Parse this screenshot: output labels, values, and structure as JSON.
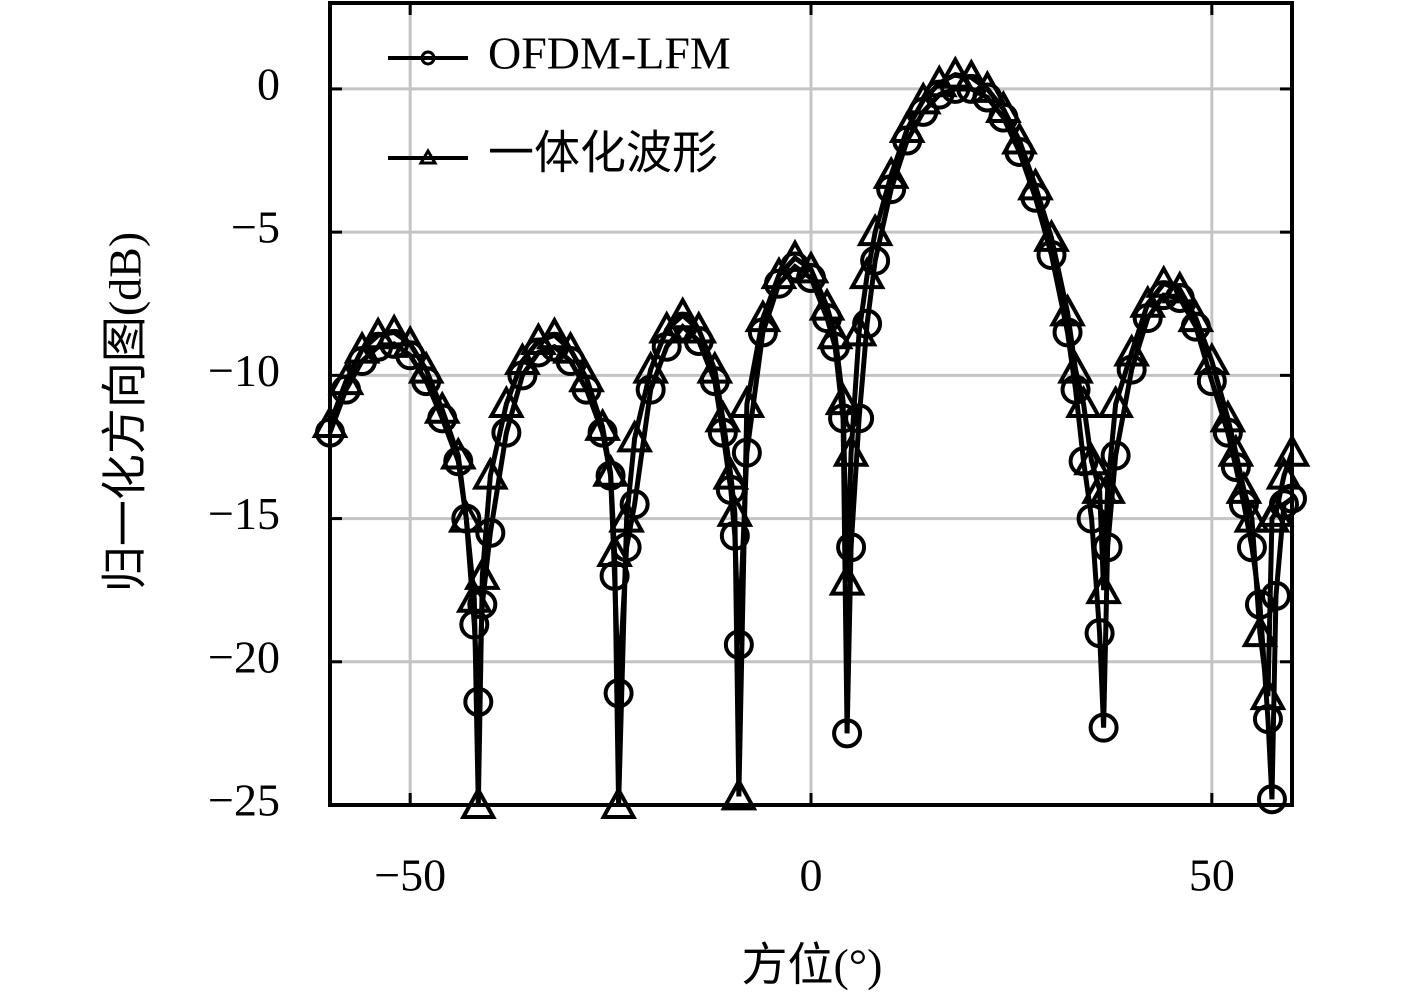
{
  "chart_data": {
    "type": "line",
    "xlabel": "方位(°)",
    "ylabel": "归一化方向图(dB)",
    "x": [
      -60,
      -58,
      -56,
      -54,
      -52,
      -50,
      -48,
      -46,
      -44,
      -43,
      -42,
      -41.5,
      -41,
      -40,
      -38,
      -36,
      -34,
      -32,
      -30,
      -28,
      -26,
      -25,
      -24.5,
      -24,
      -23,
      -22,
      -20,
      -18,
      -16,
      -14,
      -12,
      -11,
      -10,
      -9.5,
      -9,
      -8,
      -6,
      -4,
      -2,
      0,
      2,
      3,
      4,
      4.5,
      5,
      6,
      7,
      8,
      10,
      12,
      14,
      16,
      18,
      20,
      22,
      24,
      26,
      28,
      30,
      32,
      33,
      34,
      35,
      36,
      36.5,
      37,
      38,
      40,
      42,
      44,
      46,
      48,
      50,
      52,
      53,
      54,
      55,
      56,
      57,
      57.5,
      58,
      59,
      60
    ],
    "series": [
      {
        "name": "OFDM-LFM",
        "color": "#000000",
        "marker": "circle",
        "values": [
          -12,
          -10.5,
          -9.5,
          -9,
          -8.9,
          -9.3,
          -10.2,
          -11.5,
          -13,
          -15,
          -18.7,
          -21.4,
          -18,
          -15.5,
          -12,
          -10,
          -9.2,
          -9,
          -9.5,
          -10.5,
          -12,
          -13.5,
          -17,
          -21.1,
          -16,
          -14.5,
          -10.5,
          -9,
          -8.3,
          -8.8,
          -10.2,
          -12,
          -14,
          -15.6,
          -19.4,
          -12.7,
          -8.5,
          -6.8,
          -6.2,
          -6.6,
          -8,
          -9,
          -11.5,
          -22.5,
          -16,
          -11.5,
          -8.2,
          -6,
          -3.5,
          -1.8,
          -0.8,
          -0.2,
          0,
          0,
          -0.3,
          -1,
          -2.2,
          -3.8,
          -5.8,
          -8.5,
          -10.5,
          -13,
          -15,
          -19,
          -22.3,
          -16,
          -12.8,
          -9.8,
          -8,
          -7.2,
          -7.3,
          -8.3,
          -10.2,
          -12,
          -13.2,
          -14.5,
          -16,
          -18,
          -22,
          -24.8,
          -17.7,
          -14.5,
          -14.3
        ]
      },
      {
        "name": "一体化波形",
        "color": "#000000",
        "marker": "triangle",
        "values": [
          -11.7,
          -10.2,
          -9.1,
          -8.6,
          -8.5,
          -8.9,
          -9.8,
          -11.2,
          -12.8,
          -15,
          -17.8,
          -25,
          -17,
          -13.5,
          -11,
          -9.5,
          -8.8,
          -8.6,
          -9.1,
          -10.1,
          -11.8,
          -13.4,
          -16.2,
          -25,
          -15,
          -12.2,
          -9.8,
          -8.4,
          -7.9,
          -8.4,
          -9.8,
          -11.5,
          -13.5,
          -14.8,
          -24.7,
          -11,
          -8,
          -6.5,
          -5.9,
          -6.3,
          -7.6,
          -8.6,
          -10.9,
          -17.2,
          -12.7,
          -8.5,
          -6.5,
          -5,
          -3,
          -1.4,
          -0.4,
          0.2,
          0.5,
          0.4,
          0,
          -0.7,
          -1.8,
          -3.4,
          -5.2,
          -7.8,
          -9.8,
          -11,
          -13,
          -14,
          -17.5,
          -14,
          -11,
          -9.2,
          -7.5,
          -6.8,
          -7,
          -8,
          -9.5,
          -11.5,
          -12.7,
          -14,
          -15,
          -19,
          -21.2,
          -15,
          -14.8,
          -13.5,
          -12.7
        ]
      }
    ],
    "xlim": [
      -60,
      60
    ],
    "ylim": [
      -25,
      3
    ],
    "xticks": [
      {
        "value": -50,
        "label": "−50"
      },
      0,
      50
    ],
    "yticks": [
      0,
      {
        "value": -5,
        "label": "−5"
      },
      {
        "value": -10,
        "label": "−10"
      },
      {
        "value": -15,
        "label": "−15"
      },
      {
        "value": -20,
        "label": "−20"
      },
      {
        "value": -25,
        "label": "−25"
      }
    ],
    "grid": true,
    "legend": "upper left"
  }
}
